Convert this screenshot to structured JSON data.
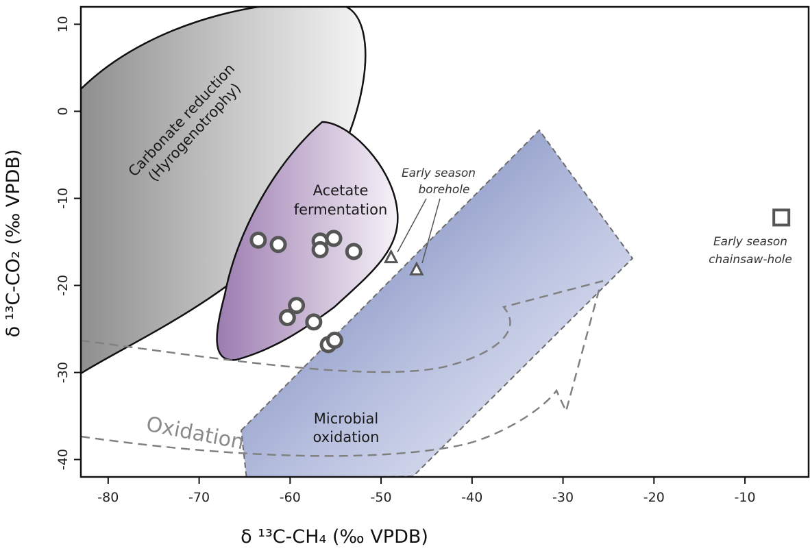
{
  "chart_data": {
    "type": "scatter",
    "xlabel": "δ ¹³C-CH₄ (‰ VPDB)",
    "ylabel": "δ ¹³C-CO₂ (‰ VPDB)",
    "xlim": [
      -83,
      -3
    ],
    "ylim": [
      -42,
      12
    ],
    "x_ticks": [
      -80,
      -70,
      -60,
      -50,
      -40,
      -30,
      -20,
      -10
    ],
    "y_ticks": [
      10,
      0,
      -10,
      -20,
      -30,
      -40
    ],
    "grid": false,
    "regions": [
      {
        "name": "carbonate",
        "label_lines": [
          "Carbonate reduction",
          "(Hyrogenotrophy)"
        ],
        "fill": "#9a9a9a"
      },
      {
        "name": "acetate",
        "label_lines": [
          "Acetate",
          "fermentation"
        ],
        "fill": "#8d6fa6"
      },
      {
        "name": "microbial",
        "label_lines": [
          "Microbial",
          "oxidation"
        ],
        "fill": "#6f7fb6"
      }
    ],
    "process_label": "Oxidation",
    "series": [
      {
        "marker": "circle",
        "points": [
          [
            -63.5,
            -14.8
          ],
          [
            -61.3,
            -15.3
          ],
          [
            -56.7,
            -14.9
          ],
          [
            -56.7,
            -15.9
          ],
          [
            -55.2,
            -14.6
          ],
          [
            -53.0,
            -16.1
          ],
          [
            -59.3,
            -22.3
          ],
          [
            -60.3,
            -23.7
          ],
          [
            -57.4,
            -24.2
          ],
          [
            -55.8,
            -26.8
          ],
          [
            -55.1,
            -26.3
          ]
        ]
      },
      {
        "marker": "triangle",
        "points": [
          [
            -48.9,
            -16.8
          ],
          [
            -46.1,
            -18.2
          ]
        ]
      },
      {
        "marker": "square",
        "points": [
          [
            -6.0,
            -12.2
          ]
        ]
      }
    ],
    "annotations": [
      {
        "name": "borehole",
        "lines": [
          "Early season",
          "borehole"
        ]
      },
      {
        "name": "chainsaw",
        "lines": [
          "Early season",
          "chainsaw-hole"
        ]
      }
    ]
  }
}
